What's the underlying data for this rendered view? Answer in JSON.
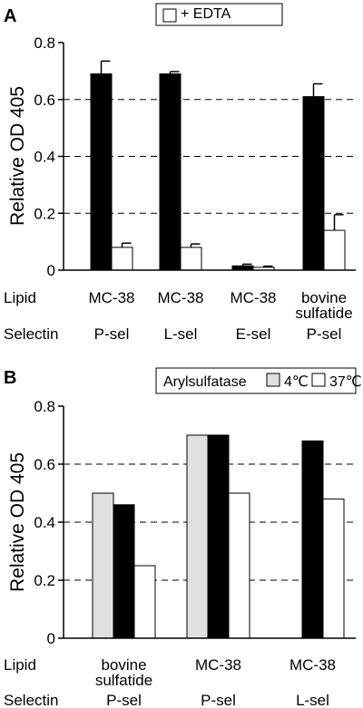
{
  "chart_data": [
    {
      "panel": "A",
      "type": "bar",
      "ylabel": "Relative OD 405",
      "ylim": [
        0,
        0.8
      ],
      "yticks": [
        "0",
        "0.2",
        "0.4",
        "0.6",
        "0.8"
      ],
      "grid": "dashed horizontal",
      "legend": {
        "position": "top-right",
        "entries": [
          "+ EDTA"
        ]
      },
      "row_labels": [
        "Lipid",
        "Selectin"
      ],
      "categories": [
        {
          "lipid": "MC-38",
          "selectin": "P-sel"
        },
        {
          "lipid": "MC-38",
          "selectin": "L-sel"
        },
        {
          "lipid": "MC-38",
          "selectin": "E-sel"
        },
        {
          "lipid": "bovine\nsulfatide",
          "selectin": "P-sel"
        }
      ],
      "series": [
        {
          "key": "control",
          "color": "#000000",
          "values": [
            0.69,
            0.69,
            0.015,
            0.61
          ],
          "errors": [
            0.045,
            0.008,
            0.006,
            0.045
          ]
        },
        {
          "key": "edta",
          "name": "+ EDTA",
          "color": "#ffffff",
          "values": [
            0.08,
            0.08,
            0.01,
            0.14
          ],
          "errors": [
            0.015,
            0.012,
            0.004,
            0.055
          ]
        }
      ]
    },
    {
      "panel": "B",
      "type": "bar",
      "ylabel": "Relative OD 405",
      "ylim": [
        0,
        0.8
      ],
      "yticks": [
        "0",
        "0.2",
        "0.4",
        "0.6",
        "0.8"
      ],
      "grid": "dashed horizontal",
      "legend": {
        "position": "top-right",
        "title": "Arylsulfatase",
        "entries": [
          "4℃",
          "37℃"
        ]
      },
      "row_labels": [
        "Lipid",
        "Selectin"
      ],
      "categories": [
        {
          "lipid": "bovine\nsulfatide",
          "selectin": "P-sel"
        },
        {
          "lipid": "MC-38",
          "selectin": "P-sel"
        },
        {
          "lipid": "MC-38",
          "selectin": "L-sel"
        }
      ],
      "series": [
        {
          "key": "ctrl4",
          "name": "4℃",
          "color": "#e0e0e0",
          "values": [
            0.5,
            0.7,
            null
          ]
        },
        {
          "key": "untreated",
          "color": "#000000",
          "values": [
            0.46,
            0.7,
            0.68
          ]
        },
        {
          "key": "treated37",
          "name": "37℃",
          "color": "#ffffff",
          "values": [
            0.25,
            0.5,
            0.48
          ]
        }
      ]
    }
  ]
}
